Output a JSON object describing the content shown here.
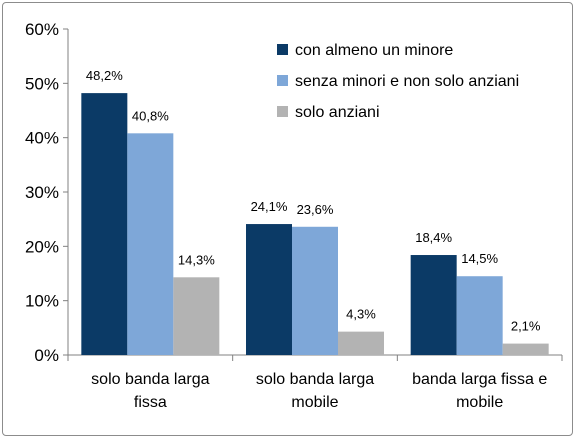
{
  "chart_data": {
    "type": "bar",
    "categories": [
      [
        "solo banda larga",
        "fissa"
      ],
      [
        "solo banda larga",
        "mobile"
      ],
      [
        "banda larga fissa e",
        "mobile"
      ]
    ],
    "series": [
      {
        "name": "con almeno un minore",
        "color": "#0b3a66",
        "values": [
          48.2,
          24.1,
          18.4
        ],
        "labels": [
          "48,2%",
          "24,1%",
          "18,4%"
        ]
      },
      {
        "name": "senza minori e non solo anziani",
        "color": "#7ea7d8",
        "values": [
          40.8,
          23.6,
          14.5
        ],
        "labels": [
          "40,8%",
          "23,6%",
          "14,5%"
        ]
      },
      {
        "name": "solo anziani",
        "color": "#b3b3b3",
        "values": [
          14.3,
          4.3,
          2.1
        ],
        "labels": [
          "14,3%",
          "4,3%",
          "2,1%"
        ]
      }
    ],
    "ylim": [
      0,
      60
    ],
    "yticks": [
      0,
      10,
      20,
      30,
      40,
      50,
      60
    ],
    "ytick_labels": [
      "0%",
      "10%",
      "20%",
      "30%",
      "40%",
      "50%",
      "60%"
    ],
    "title": "",
    "xlabel": "",
    "ylabel": "",
    "grid": false,
    "legend_position": "top-right"
  }
}
